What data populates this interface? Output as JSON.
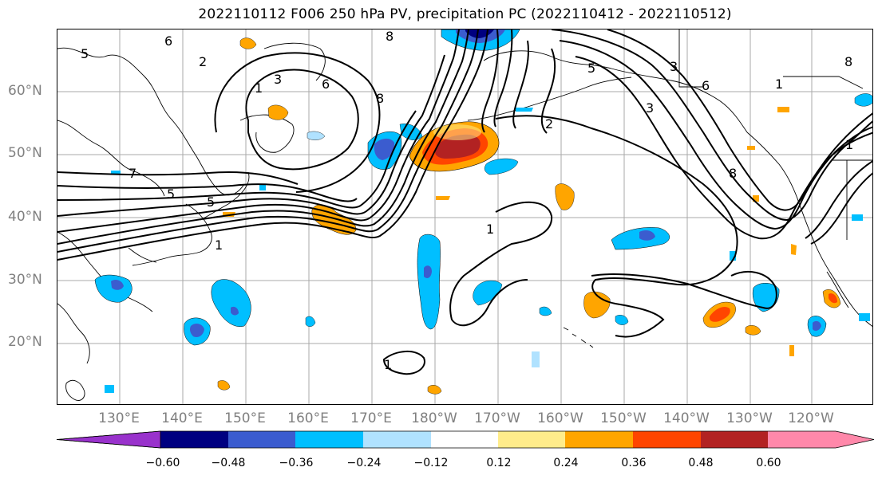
{
  "title": "2022110112 F006 250 hPa PV, precipitation PC (2022110412 - 2022110512)",
  "lat_labels": [
    "60°N",
    "50°N",
    "40°N",
    "30°N",
    "20°N"
  ],
  "lon_labels": [
    "130°E",
    "140°E",
    "150°E",
    "160°E",
    "170°E",
    "180°W",
    "170°W",
    "160°W",
    "150°W",
    "140°W",
    "130°W",
    "120°W"
  ],
  "contour_labels": [
    "6",
    "8",
    "5",
    "2",
    "3",
    "6",
    "1",
    "5",
    "8",
    "7",
    "5",
    "1",
    "1",
    "1",
    "1",
    "3",
    "5",
    "6",
    "8",
    "8",
    "3",
    "2",
    "1"
  ],
  "colorbar": {
    "ticks": [
      "−0.60",
      "−0.48",
      "−0.36",
      "−0.24",
      "−0.12",
      "0.12",
      "0.24",
      "0.36",
      "0.48",
      "0.60"
    ],
    "colors": [
      "#9932cc",
      "#000080",
      "#3b5ccf",
      "#00bfff",
      "#b0e2ff",
      "#ffffff",
      "#ffec8b",
      "#ffa500",
      "#ff4500",
      "#b22222",
      "#ff88aa"
    ]
  }
}
